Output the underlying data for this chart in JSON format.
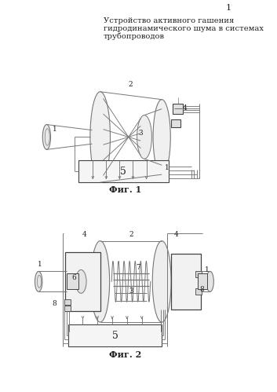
{
  "title_line1": "Устройство активного гашения",
  "title_line2": "гидродинамического шума в системах",
  "title_line3": "трубопроводов",
  "fig1_caption": "Фиг. 1",
  "fig2_caption": "Фиг. 2",
  "page_number": "1",
  "bg_color": "#ffffff",
  "line_color": "#777777",
  "dark_line": "#444444",
  "text_color": "#222222",
  "title_fontsize": 7.2,
  "caption_fontsize": 8.0,
  "label_fontsize": 6.5
}
